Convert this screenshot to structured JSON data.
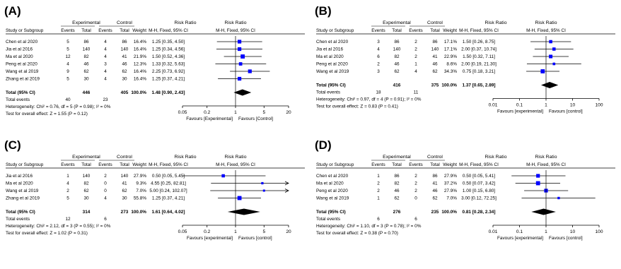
{
  "panels": [
    {
      "letter": "(A)",
      "headers": {
        "study": "Study or Subgroup",
        "group1": "Experimental",
        "group2": "Control",
        "events": "Events",
        "total": "Total",
        "weight": "Weight",
        "rr_title": "Risk Ratio",
        "rr_sub": "M-H, Fixed, 95% CI",
        "plot_title": "Risk Ratio",
        "plot_sub": "M-H, Fixed, 95% CI"
      },
      "studies": [
        {
          "name": "Chen et al 2020",
          "e1": "5",
          "n1": "86",
          "e2": "4",
          "n2": "86",
          "weight": "16.4%",
          "ci": "1.25 [0.35, 4.50]"
        },
        {
          "name": "Jia et al 2016",
          "e1": "5",
          "n1": "140",
          "e2": "4",
          "n2": "140",
          "weight": "16.4%",
          "ci": "1.25 [0.34, 4.56]"
        },
        {
          "name": "Ma et al 2020",
          "e1": "12",
          "n1": "82",
          "e2": "4",
          "n2": "41",
          "weight": "21.9%",
          "ci": "1.50 [0.52, 4.36]"
        },
        {
          "name": "Peng et al 2020",
          "e1": "4",
          "n1": "46",
          "e2": "3",
          "n2": "46",
          "weight": "12.3%",
          "ci": "1.33 [0.32, 5.63]"
        },
        {
          "name": "Wang et al 2019",
          "e1": "9",
          "n1": "62",
          "e2": "4",
          "n2": "62",
          "weight": "16.4%",
          "ci": "2.25 [0.73, 6.92]"
        },
        {
          "name": "Zhang et al 2019",
          "e1": "5",
          "n1": "30",
          "e2": "4",
          "n2": "30",
          "weight": "16.4%",
          "ci": "1.25 [0.37, 4.21]"
        }
      ],
      "total_row": {
        "label": "Total (95% CI)",
        "n1": "446",
        "n2": "405",
        "weight": "100.0%",
        "ci": "1.48 [0.90, 2.43]"
      },
      "events_row": {
        "label": "Total events",
        "e1": "40",
        "e2": "23"
      },
      "heterogeneity": "Heterogeneity: Chi² = 0.76, df = 5 (P = 0.98); I² = 0%",
      "overall": "Test for overall effect: Z = 1.55 (P = 0.12)",
      "axis_ticks": [
        "0.05",
        "0.2",
        "1",
        "5",
        "20"
      ],
      "favours_left": "Favours [Experimental]",
      "favours_right": "Favours [Control]"
    },
    {
      "letter": "(B)",
      "headers": {
        "study": "Study or Subgroup",
        "group1": "Experimental",
        "group2": "Control",
        "events": "Events",
        "total": "Total",
        "weight": "Weight",
        "rr_title": "Risk Ratio",
        "rr_sub": "M-H, Fixed, 95% CI",
        "plot_title": "Risk Ratio",
        "plot_sub": "M-H, Fixed, 95% CI"
      },
      "studies": [
        {
          "name": "Chen et al 2020",
          "e1": "3",
          "n1": "86",
          "e2": "2",
          "n2": "86",
          "weight": "17.1%",
          "ci": "1.50 [0.26, 8.75]"
        },
        {
          "name": "Jia et al 2016",
          "e1": "4",
          "n1": "140",
          "e2": "2",
          "n2": "140",
          "weight": "17.1%",
          "ci": "2.00 [0.37, 10.74]"
        },
        {
          "name": "Ma et al 2020",
          "e1": "6",
          "n1": "82",
          "e2": "2",
          "n2": "41",
          "weight": "22.9%",
          "ci": "1.50 [0.32, 7.11]"
        },
        {
          "name": "Peng et al 2020",
          "e1": "2",
          "n1": "46",
          "e2": "1",
          "n2": "46",
          "weight": "8.6%",
          "ci": "2.00 [0.19, 21.30]"
        },
        {
          "name": "Wang et al 2019",
          "e1": "3",
          "n1": "62",
          "e2": "4",
          "n2": "62",
          "weight": "34.3%",
          "ci": "0.75 [0.18, 3.21]"
        }
      ],
      "total_row": {
        "label": "Total (95% CI)",
        "n1": "416",
        "n2": "375",
        "weight": "100.0%",
        "ci": "1.37 [0.65, 2.89]"
      },
      "events_row": {
        "label": "Total events",
        "e1": "18",
        "e2": "11"
      },
      "heterogeneity": "Heterogeneity: Chi² = 0.97, df = 4 (P = 0.91); I² = 0%",
      "overall": "Test for overall effect: Z = 0.83 (P = 0.41)",
      "axis_ticks": [
        "0.01",
        "0.1",
        "1",
        "10",
        "100"
      ],
      "favours_left": "Favours [experimental]",
      "favours_right": "Favours [control]"
    },
    {
      "letter": "(C)",
      "headers": {
        "study": "Study or Subgroup",
        "group1": "Experimental",
        "group2": "Control",
        "events": "Events",
        "total": "Total",
        "weight": "Weight",
        "rr_title": "Risk Ratio",
        "rr_sub": "M-H, Fixed, 95% CI",
        "plot_title": "Risk Ratio",
        "plot_sub": "M-H, Fixed, 95% CI"
      },
      "studies": [
        {
          "name": "Jia et al 2016",
          "e1": "1",
          "n1": "140",
          "e2": "2",
          "n2": "140",
          "weight": "27.9%",
          "ci": "0.50 [0.05, 5.45]"
        },
        {
          "name": "Ma et al 2020",
          "e1": "4",
          "n1": "82",
          "e2": "0",
          "n2": "41",
          "weight": "9.3%",
          "ci": "4.55 [0.25, 82.81]"
        },
        {
          "name": "Wang et al 2019",
          "e1": "2",
          "n1": "62",
          "e2": "0",
          "n2": "62",
          "weight": "7.0%",
          "ci": "5.00 [0.24, 102.07]"
        },
        {
          "name": "Zhang et al 2019",
          "e1": "5",
          "n1": "30",
          "e2": "4",
          "n2": "30",
          "weight": "55.8%",
          "ci": "1.25 [0.37, 4.21]"
        }
      ],
      "total_row": {
        "label": "Total (95% CI)",
        "n1": "314",
        "n2": "273",
        "weight": "100.0%",
        "ci": "1.61 [0.64, 4.02]"
      },
      "events_row": {
        "label": "Total events",
        "e1": "12",
        "e2": "6"
      },
      "heterogeneity": "Heterogeneity: Chi² = 2.12, df = 3 (P = 0.55); I² = 0%",
      "overall": "Test for overall effect: Z = 1.02 (P = 0.31)",
      "axis_ticks": [
        "0.05",
        "0.2",
        "1",
        "5",
        "20"
      ],
      "favours_left": "Favours [experimental]",
      "favours_right": "Favours [control]"
    },
    {
      "letter": "(D)",
      "headers": {
        "study": "Study or Subgroup",
        "group1": "Experimental",
        "group2": "Control",
        "events": "Events",
        "total": "Total",
        "weight": "Weight",
        "rr_title": "Risk Ratio",
        "rr_sub": "M-H, Fixed, 95% CI",
        "plot_title": "Risk Ratio",
        "plot_sub": "M-H, Fixed, 95% CI"
      },
      "studies": [
        {
          "name": "Chen et al 2020",
          "e1": "1",
          "n1": "86",
          "e2": "2",
          "n2": "86",
          "weight": "27.9%",
          "ci": "0.50 [0.05, 5.41]"
        },
        {
          "name": "Ma et al 2020",
          "e1": "2",
          "n1": "82",
          "e2": "2",
          "n2": "41",
          "weight": "37.2%",
          "ci": "0.50 [0.07, 3.42]"
        },
        {
          "name": "Peng et al 2020",
          "e1": "2",
          "n1": "46",
          "e2": "2",
          "n2": "46",
          "weight": "27.9%",
          "ci": "1.00 [0.15, 6.80]"
        },
        {
          "name": "Wang et al 2019",
          "e1": "1",
          "n1": "62",
          "e2": "0",
          "n2": "62",
          "weight": "7.0%",
          "ci": "3.00 [0.12, 72.25]"
        }
      ],
      "total_row": {
        "label": "Total (95% CI)",
        "n1": "276",
        "n2": "235",
        "weight": "100.0%",
        "ci": "0.81 [0.28, 2.34]"
      },
      "events_row": {
        "label": "Total events",
        "e1": "6",
        "e2": "6"
      },
      "heterogeneity": "Heterogeneity: Chi² = 1.10, df = 3 (P = 0.78); I² = 0%",
      "overall": "Test for overall effect: Z = 0.38 (P = 0.70)",
      "axis_ticks": [
        "0.01",
        "0.1",
        "1",
        "10",
        "100"
      ],
      "favours_left": "Favours [experimental]",
      "favours_right": "Favours [control]"
    }
  ],
  "chart_data": [
    {
      "type": "forest",
      "x_scale": "log",
      "xlim": [
        0.05,
        20
      ],
      "null_value": 1,
      "marker_color": "#0000ff",
      "rows": [
        {
          "label": "Chen et al 2020",
          "rr": 1.25,
          "ci": [
            0.35,
            4.5
          ],
          "weight": 16.4
        },
        {
          "label": "Jia et al 2016",
          "rr": 1.25,
          "ci": [
            0.34,
            4.56
          ],
          "weight": 16.4
        },
        {
          "label": "Ma et al 2020",
          "rr": 1.5,
          "ci": [
            0.52,
            4.36
          ],
          "weight": 21.9
        },
        {
          "label": "Peng et al 2020",
          "rr": 1.33,
          "ci": [
            0.32,
            5.63
          ],
          "weight": 12.3
        },
        {
          "label": "Wang et al 2019",
          "rr": 2.25,
          "ci": [
            0.73,
            6.92
          ],
          "weight": 16.4
        },
        {
          "label": "Zhang et al 2019",
          "rr": 1.25,
          "ci": [
            0.37,
            4.21
          ],
          "weight": 16.4
        }
      ],
      "pooled": {
        "rr": 1.48,
        "ci": [
          0.9,
          2.43
        ]
      }
    },
    {
      "type": "forest",
      "x_scale": "log",
      "xlim": [
        0.01,
        100
      ],
      "null_value": 1,
      "marker_color": "#0000ff",
      "rows": [
        {
          "label": "Chen et al 2020",
          "rr": 1.5,
          "ci": [
            0.26,
            8.75
          ],
          "weight": 17.1
        },
        {
          "label": "Jia et al 2016",
          "rr": 2.0,
          "ci": [
            0.37,
            10.74
          ],
          "weight": 17.1
        },
        {
          "label": "Ma et al 2020",
          "rr": 1.5,
          "ci": [
            0.32,
            7.11
          ],
          "weight": 22.9
        },
        {
          "label": "Peng et al 2020",
          "rr": 2.0,
          "ci": [
            0.19,
            21.3
          ],
          "weight": 8.6
        },
        {
          "label": "Wang et al 2019",
          "rr": 0.75,
          "ci": [
            0.18,
            3.21
          ],
          "weight": 34.3
        }
      ],
      "pooled": {
        "rr": 1.37,
        "ci": [
          0.65,
          2.89
        ]
      }
    },
    {
      "type": "forest",
      "x_scale": "log",
      "xlim": [
        0.05,
        20
      ],
      "null_value": 1,
      "marker_color": "#0000ff",
      "rows": [
        {
          "label": "Jia et al 2016",
          "rr": 0.5,
          "ci": [
            0.05,
            5.45
          ],
          "weight": 27.9
        },
        {
          "label": "Ma et al 2020",
          "rr": 4.55,
          "ci": [
            0.25,
            82.81
          ],
          "weight": 9.3
        },
        {
          "label": "Wang et al 2019",
          "rr": 5.0,
          "ci": [
            0.24,
            102.07
          ],
          "weight": 7.0
        },
        {
          "label": "Zhang et al 2019",
          "rr": 1.25,
          "ci": [
            0.37,
            4.21
          ],
          "weight": 55.8
        }
      ],
      "pooled": {
        "rr": 1.61,
        "ci": [
          0.64,
          4.02
        ]
      }
    },
    {
      "type": "forest",
      "x_scale": "log",
      "xlim": [
        0.01,
        100
      ],
      "null_value": 1,
      "marker_color": "#0000ff",
      "rows": [
        {
          "label": "Chen et al 2020",
          "rr": 0.5,
          "ci": [
            0.05,
            5.41
          ],
          "weight": 27.9
        },
        {
          "label": "Ma et al 2020",
          "rr": 0.5,
          "ci": [
            0.07,
            3.42
          ],
          "weight": 37.2
        },
        {
          "label": "Peng et al 2020",
          "rr": 1.0,
          "ci": [
            0.15,
            6.8
          ],
          "weight": 27.9
        },
        {
          "label": "Wang et al 2019",
          "rr": 3.0,
          "ci": [
            0.12,
            72.25
          ],
          "weight": 7.0
        }
      ],
      "pooled": {
        "rr": 0.81,
        "ci": [
          0.28,
          2.34
        ]
      }
    }
  ]
}
